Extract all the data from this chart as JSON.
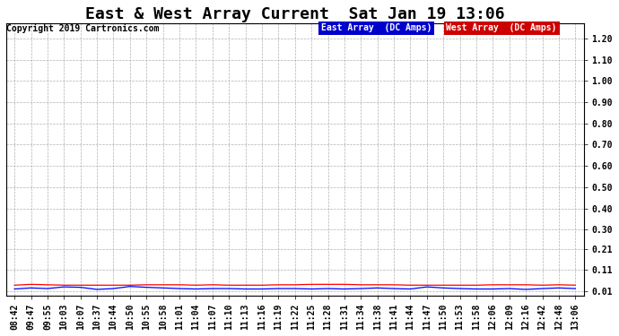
{
  "title": "East & West Array Current  Sat Jan 19 13:06",
  "copyright": "Copyright 2019 Cartronics.com",
  "legend_east": "East Array  (DC Amps)",
  "legend_west": "West Array  (DC Amps)",
  "east_color": "#0000ff",
  "west_color": "#ff0000",
  "legend_east_bg": "#0000cc",
  "legend_west_bg": "#cc0000",
  "yticks": [
    0.01,
    0.11,
    0.21,
    0.3,
    0.4,
    0.5,
    0.6,
    0.7,
    0.8,
    0.9,
    1.0,
    1.1,
    1.2
  ],
  "ytick_labels": [
    "0.01",
    "0.11",
    "0.21",
    "0.30",
    "0.40",
    "0.50",
    "0.60",
    "0.70",
    "0.80",
    "0.90",
    "1.00",
    "1.10",
    "1.20"
  ],
  "ylim": [
    -0.01,
    1.27
  ],
  "xtick_labels": [
    "08:42",
    "09:47",
    "09:55",
    "10:03",
    "10:07",
    "10:37",
    "10:44",
    "10:50",
    "10:55",
    "10:58",
    "11:01",
    "11:04",
    "11:07",
    "11:10",
    "11:13",
    "11:16",
    "11:19",
    "11:22",
    "11:25",
    "11:28",
    "11:31",
    "11:34",
    "11:38",
    "11:41",
    "11:44",
    "11:47",
    "11:50",
    "11:53",
    "11:58",
    "12:06",
    "12:09",
    "12:16",
    "12:42",
    "12:48",
    "13:06"
  ],
  "bg_color": "#ffffff",
  "grid_color": "#b0b0b0",
  "title_fontsize": 13,
  "copyright_fontsize": 7,
  "tick_fontsize": 7,
  "east_vals": [
    0.02,
    0.025,
    0.022,
    0.03,
    0.028,
    0.018,
    0.022,
    0.032,
    0.028,
    0.025,
    0.022,
    0.02,
    0.022,
    0.022,
    0.02,
    0.02,
    0.022,
    0.022,
    0.02,
    0.022,
    0.02,
    0.022,
    0.025,
    0.022,
    0.02,
    0.03,
    0.025,
    0.022,
    0.02,
    0.02,
    0.022,
    0.018,
    0.022,
    0.025,
    0.022
  ],
  "west_vals": [
    0.038,
    0.042,
    0.04,
    0.038,
    0.038,
    0.038,
    0.038,
    0.038,
    0.04,
    0.04,
    0.04,
    0.038,
    0.04,
    0.038,
    0.038,
    0.038,
    0.04,
    0.04,
    0.042,
    0.042,
    0.042,
    0.04,
    0.04,
    0.04,
    0.038,
    0.038,
    0.038,
    0.038,
    0.038,
    0.04,
    0.04,
    0.04,
    0.038,
    0.04,
    0.038
  ]
}
